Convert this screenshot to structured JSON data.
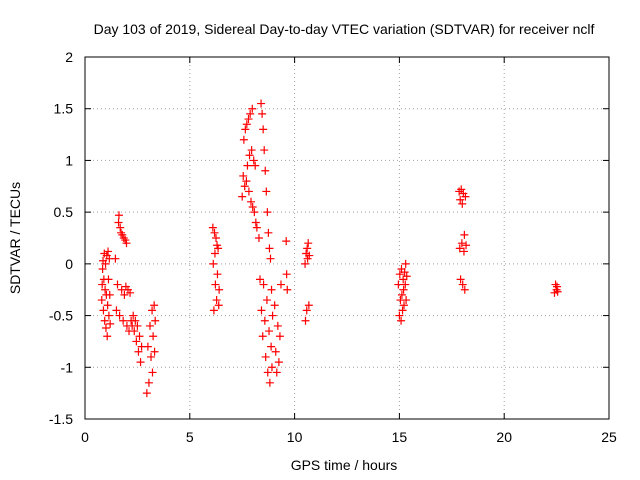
{
  "chart_data": {
    "type": "scatter",
    "title": "Day 103 of 2019, Sidereal Day-to-day VTEC variation (SDTVAR) for receiver nclf",
    "xlabel": "GPS time / hours",
    "ylabel": "SDTVAR / TECUs",
    "xlim": [
      0,
      25
    ],
    "ylim": [
      -1.5,
      2
    ],
    "xticks": [
      0,
      5,
      10,
      15,
      20,
      25
    ],
    "xtick_labels": [
      "0",
      "5",
      "10",
      "15",
      "20",
      "25"
    ],
    "yticks": [
      -1.5,
      -1,
      -0.5,
      0,
      0.5,
      1,
      1.5,
      2
    ],
    "ytick_labels": [
      "-1.5",
      "-1",
      "-0.5",
      "0",
      "0.5",
      "1",
      "1.5",
      "2"
    ],
    "grid": true,
    "marker": "plus",
    "color": "#ff0000",
    "series": [
      {
        "name": "SDTVAR",
        "points": [
          [
            0.8,
            -0.35
          ],
          [
            0.82,
            -0.2
          ],
          [
            0.84,
            -0.05
          ],
          [
            0.86,
            0.03
          ],
          [
            0.88,
            -0.45
          ],
          [
            0.9,
            -0.15
          ],
          [
            0.92,
            0.1
          ],
          [
            0.94,
            -0.55
          ],
          [
            0.96,
            -0.25
          ],
          [
            0.98,
            0.0
          ],
          [
            1.0,
            -0.62
          ],
          [
            1.02,
            -0.3
          ],
          [
            1.04,
            0.08
          ],
          [
            1.06,
            -0.7
          ],
          [
            1.08,
            -0.4
          ],
          [
            1.1,
            0.12
          ],
          [
            1.12,
            -0.15
          ],
          [
            1.14,
            -0.5
          ],
          [
            1.16,
            0.05
          ],
          [
            1.18,
            -0.3
          ],
          [
            1.2,
            -0.58
          ],
          [
            1.45,
            0.05
          ],
          [
            1.5,
            -0.45
          ],
          [
            1.55,
            -0.2
          ],
          [
            1.6,
            0.4
          ],
          [
            1.62,
            0.47
          ],
          [
            1.65,
            -0.5
          ],
          [
            1.68,
            0.35
          ],
          [
            1.72,
            0.3
          ],
          [
            1.75,
            -0.25
          ],
          [
            1.78,
            0.28
          ],
          [
            1.82,
            -0.55
          ],
          [
            1.85,
            0.25
          ],
          [
            1.88,
            -0.3
          ],
          [
            1.92,
            0.23
          ],
          [
            1.95,
            -0.22
          ],
          [
            1.98,
            0.2
          ],
          [
            2.0,
            -0.6
          ],
          [
            2.05,
            -0.25
          ],
          [
            2.1,
            -0.65
          ],
          [
            2.15,
            -0.28
          ],
          [
            2.2,
            -0.55
          ],
          [
            2.25,
            -0.6
          ],
          [
            2.3,
            -0.5
          ],
          [
            2.35,
            -0.65
          ],
          [
            2.4,
            -0.55
          ],
          [
            2.45,
            -0.75
          ],
          [
            2.5,
            -0.6
          ],
          [
            2.55,
            -0.85
          ],
          [
            2.6,
            -0.7
          ],
          [
            2.65,
            -0.95
          ],
          [
            2.7,
            -0.8
          ],
          [
            2.95,
            -1.25
          ],
          [
            3.0,
            -0.8
          ],
          [
            3.05,
            -1.15
          ],
          [
            3.1,
            -0.6
          ],
          [
            3.15,
            -0.9
          ],
          [
            3.2,
            -0.45
          ],
          [
            3.22,
            -1.05
          ],
          [
            3.25,
            -0.7
          ],
          [
            3.3,
            -0.4
          ],
          [
            3.32,
            -0.85
          ],
          [
            3.35,
            -0.55
          ],
          [
            6.1,
            0.35
          ],
          [
            6.12,
            0.0
          ],
          [
            6.15,
            -0.45
          ],
          [
            6.18,
            0.3
          ],
          [
            6.2,
            0.1
          ],
          [
            6.22,
            -0.2
          ],
          [
            6.25,
            0.25
          ],
          [
            6.28,
            -0.35
          ],
          [
            6.3,
            0.18
          ],
          [
            6.32,
            -0.1
          ],
          [
            6.35,
            0.15
          ],
          [
            6.38,
            -0.4
          ],
          [
            6.4,
            -0.25
          ],
          [
            7.5,
            0.65
          ],
          [
            7.55,
            0.85
          ],
          [
            7.58,
            1.2
          ],
          [
            7.62,
            0.75
          ],
          [
            7.65,
            1.3
          ],
          [
            7.7,
            0.8
          ],
          [
            7.72,
            1.35
          ],
          [
            7.75,
            0.95
          ],
          [
            7.8,
            1.4
          ],
          [
            7.82,
            0.7
          ],
          [
            7.85,
            1.05
          ],
          [
            7.88,
            1.45
          ],
          [
            7.92,
            0.6
          ],
          [
            7.95,
            1.1
          ],
          [
            7.98,
            1.5
          ],
          [
            8.0,
            0.55
          ],
          [
            8.05,
            1.0
          ],
          [
            8.08,
            0.5
          ],
          [
            8.12,
            0.95
          ],
          [
            8.15,
            0.4
          ],
          [
            8.2,
            0.35
          ],
          [
            8.3,
            0.25
          ],
          [
            8.35,
            -0.15
          ],
          [
            8.4,
            1.55
          ],
          [
            8.42,
            -0.45
          ],
          [
            8.45,
            1.45
          ],
          [
            8.48,
            -0.7
          ],
          [
            8.5,
            1.3
          ],
          [
            8.52,
            -0.2
          ],
          [
            8.55,
            1.1
          ],
          [
            8.58,
            -0.55
          ],
          [
            8.6,
            0.9
          ],
          [
            8.62,
            -0.9
          ],
          [
            8.65,
            0.7
          ],
          [
            8.68,
            -0.35
          ],
          [
            8.7,
            0.5
          ],
          [
            8.72,
            -1.05
          ],
          [
            8.75,
            0.3
          ],
          [
            8.78,
            -0.65
          ],
          [
            8.8,
            0.15
          ],
          [
            8.82,
            -1.15
          ],
          [
            8.85,
            0.05
          ],
          [
            8.88,
            -0.8
          ],
          [
            8.9,
            -0.25
          ],
          [
            8.92,
            -1.0
          ],
          [
            8.95,
            -0.5
          ],
          [
            9.05,
            -0.4
          ],
          [
            9.1,
            -0.85
          ],
          [
            9.15,
            -1.05
          ],
          [
            9.2,
            -0.6
          ],
          [
            9.25,
            -0.95
          ],
          [
            9.3,
            -0.7
          ],
          [
            9.35,
            -0.2
          ],
          [
            9.6,
            0.22
          ],
          [
            9.62,
            -0.1
          ],
          [
            9.65,
            -0.25
          ],
          [
            10.5,
            0.0
          ],
          [
            10.52,
            -0.55
          ],
          [
            10.55,
            0.1
          ],
          [
            10.58,
            -0.45
          ],
          [
            10.6,
            0.15
          ],
          [
            10.62,
            0.05
          ],
          [
            10.65,
            0.2
          ],
          [
            10.68,
            -0.4
          ],
          [
            10.7,
            0.08
          ],
          [
            14.95,
            -0.2
          ],
          [
            15.0,
            -0.5
          ],
          [
            15.02,
            -0.1
          ],
          [
            15.05,
            -0.35
          ],
          [
            15.08,
            -0.55
          ],
          [
            15.1,
            -0.05
          ],
          [
            15.12,
            -0.3
          ],
          [
            15.15,
            -0.45
          ],
          [
            15.18,
            -0.15
          ],
          [
            15.2,
            -0.25
          ],
          [
            15.22,
            -0.4
          ],
          [
            15.25,
            -0.08
          ],
          [
            15.28,
            -0.2
          ],
          [
            15.3,
            0.0
          ],
          [
            15.32,
            -0.35
          ],
          [
            15.35,
            -0.12
          ],
          [
            17.85,
            0.7
          ],
          [
            17.88,
            0.15
          ],
          [
            17.9,
            0.62
          ],
          [
            17.92,
            -0.15
          ],
          [
            17.95,
            0.72
          ],
          [
            17.98,
            0.2
          ],
          [
            18.0,
            0.58
          ],
          [
            18.02,
            -0.2
          ],
          [
            18.05,
            0.68
          ],
          [
            18.08,
            0.12
          ],
          [
            18.1,
            0.28
          ],
          [
            18.12,
            -0.25
          ],
          [
            18.15,
            0.65
          ],
          [
            18.18,
            0.18
          ],
          [
            22.4,
            -0.28
          ],
          [
            22.45,
            -0.2
          ],
          [
            22.5,
            -0.25
          ],
          [
            22.52,
            -0.22
          ],
          [
            22.55,
            -0.27
          ]
        ]
      }
    ]
  }
}
